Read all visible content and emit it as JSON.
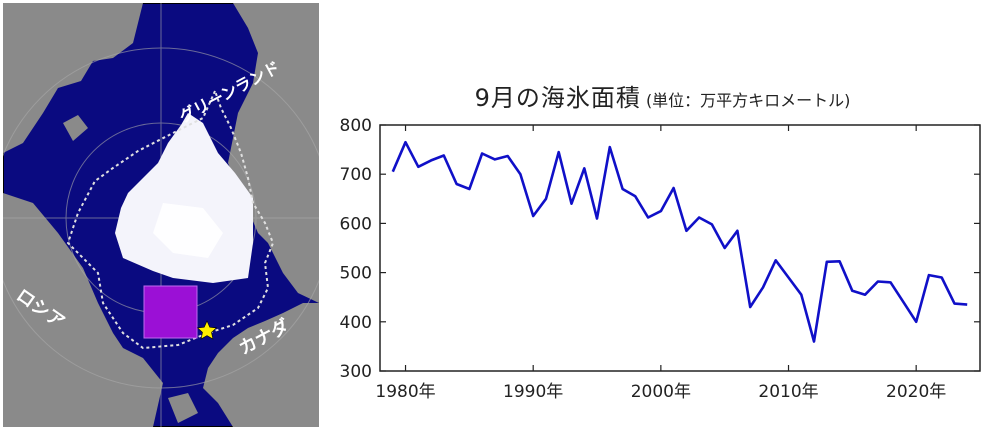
{
  "map": {
    "labels": {
      "greenland": "グリーンランド",
      "russia": "ロシア",
      "canada": "カナダ"
    },
    "marker_icon": "star-icon",
    "colors": {
      "ocean": "#0a0a80",
      "land": "#8a8a8a",
      "ice": "#ffffff",
      "region": "#9b10d6",
      "ice_edge": "#dddddd",
      "marker": "#ffee00"
    }
  },
  "chart_data": {
    "type": "line",
    "title": "9月の海氷面積",
    "subtitle": "(単位：万平方キロメートル)",
    "xlabel": "",
    "ylabel": "",
    "x_tick_labels": [
      "1980年",
      "1990年",
      "2000年",
      "2010年",
      "2020年"
    ],
    "x_ticks": [
      1980,
      1990,
      2000,
      2010,
      2020
    ],
    "xlim": [
      1978,
      2025
    ],
    "ylim": [
      300,
      800
    ],
    "y_ticks": [
      300,
      400,
      500,
      600,
      700,
      800
    ],
    "grid": false,
    "series": [
      {
        "x": [
          1979,
          1980,
          1981,
          1982,
          1983,
          1984,
          1985,
          1986,
          1987,
          1988,
          1989,
          1990,
          1991,
          1992,
          1993,
          1994,
          1995,
          1996,
          1997,
          1998,
          1999,
          2000,
          2001,
          2002,
          2003,
          2004,
          2005,
          2006,
          2007,
          2008,
          2009,
          2010,
          2011,
          2012,
          2013,
          2014,
          2015,
          2016,
          2017,
          2018,
          2019,
          2020,
          2021,
          2022,
          2023,
          2024
        ],
        "values": [
          705,
          765,
          715,
          728,
          738,
          680,
          670,
          742,
          730,
          737,
          700,
          615,
          650,
          745,
          640,
          712,
          610,
          755,
          670,
          655,
          612,
          625,
          672,
          585,
          612,
          598,
          550,
          585,
          430,
          470,
          525,
          490,
          455,
          360,
          522,
          523,
          463,
          455,
          482,
          480,
          440,
          400,
          495,
          490,
          437,
          435
        ],
        "color": "#1010c8"
      }
    ]
  }
}
